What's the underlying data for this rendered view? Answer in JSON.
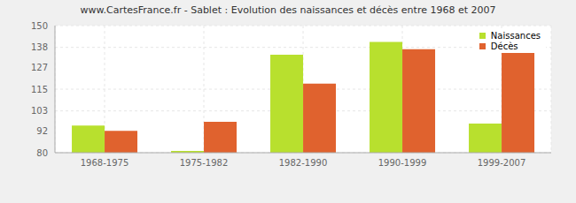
{
  "chart_data": {
    "type": "bar",
    "title": "www.CartesFrance.fr - Sablet : Evolution des naissances et décès entre 1968 et 2007",
    "categories": [
      "1968-1975",
      "1975-1982",
      "1982-1990",
      "1990-1999",
      "1999-2007"
    ],
    "series": [
      {
        "name": "Naissances",
        "color": "#b8e02e",
        "values": [
          95,
          81,
          134,
          141,
          96
        ]
      },
      {
        "name": "Décès",
        "color": "#e0622e",
        "values": [
          92,
          97,
          118,
          137,
          136
        ]
      }
    ],
    "ylim": [
      80,
      150
    ],
    "yticks": [
      80,
      92,
      103,
      115,
      127,
      138,
      150
    ],
    "grid": true,
    "legend": "upper right"
  }
}
